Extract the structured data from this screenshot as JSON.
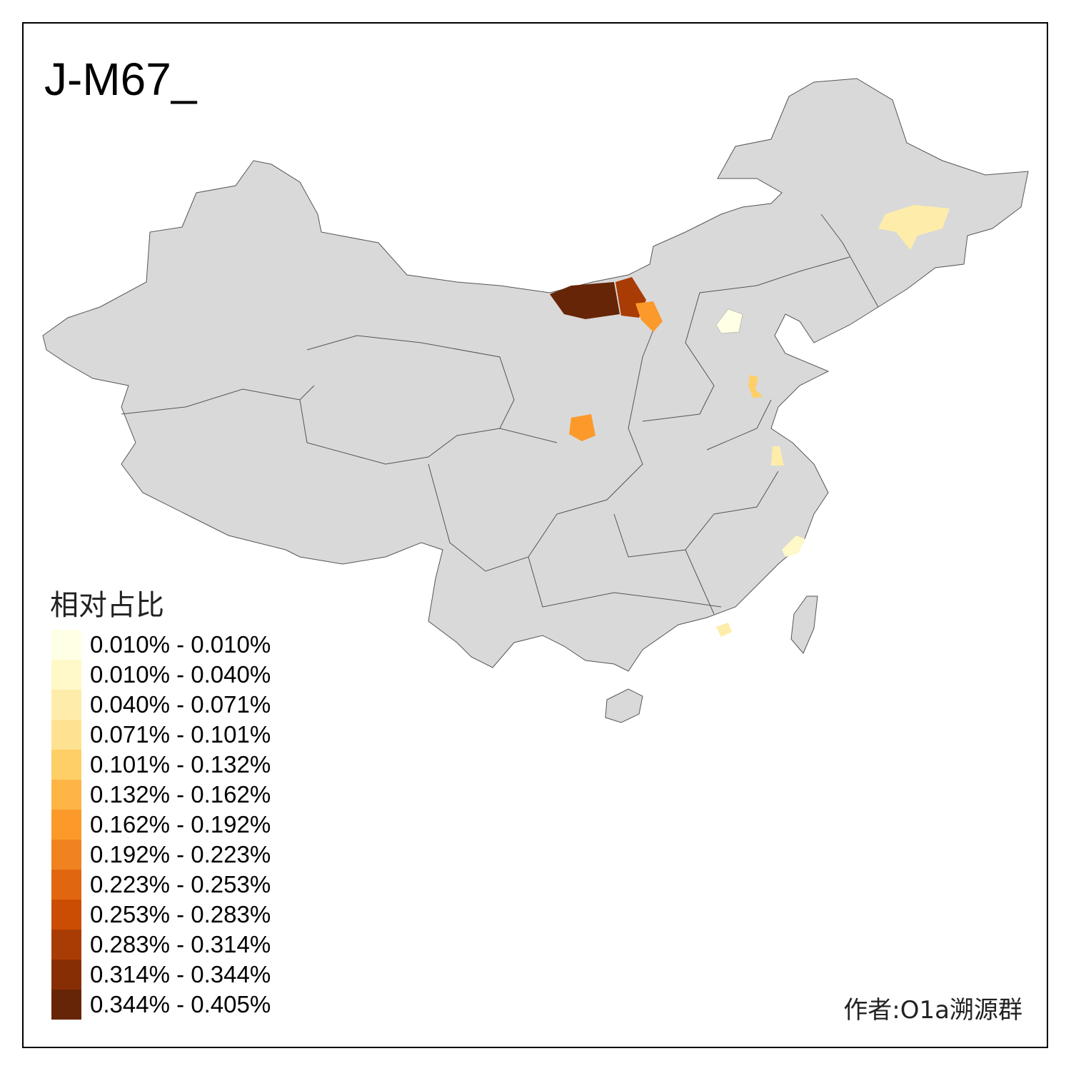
{
  "title": "J-M67_",
  "legend": {
    "title": "相对占比",
    "items": [
      {
        "label": "0.010% - 0.010%",
        "color": "#FFFFE5"
      },
      {
        "label": "0.010% - 0.040%",
        "color": "#FFF8C8"
      },
      {
        "label": "0.040% - 0.071%",
        "color": "#FEEDAA"
      },
      {
        "label": "0.071% - 0.101%",
        "color": "#FEE291"
      },
      {
        "label": "0.101% - 0.132%",
        "color": "#FECF66"
      },
      {
        "label": "0.132% - 0.162%",
        "color": "#FEB545"
      },
      {
        "label": "0.162% - 0.192%",
        "color": "#FB9A2A"
      },
      {
        "label": "0.192% - 0.223%",
        "color": "#F0821F"
      },
      {
        "label": "0.223% - 0.253%",
        "color": "#E0660F"
      },
      {
        "label": "0.253% - 0.283%",
        "color": "#CB4C03"
      },
      {
        "label": "0.283% - 0.314%",
        "color": "#A93C04"
      },
      {
        "label": "0.314% - 0.344%",
        "color": "#882E05"
      },
      {
        "label": "0.344% - 0.405%",
        "color": "#662506"
      }
    ]
  },
  "map": {
    "base_color": "#D9D9D9",
    "border_color": "#555555"
  },
  "author": "作者:O1a溯源群"
}
